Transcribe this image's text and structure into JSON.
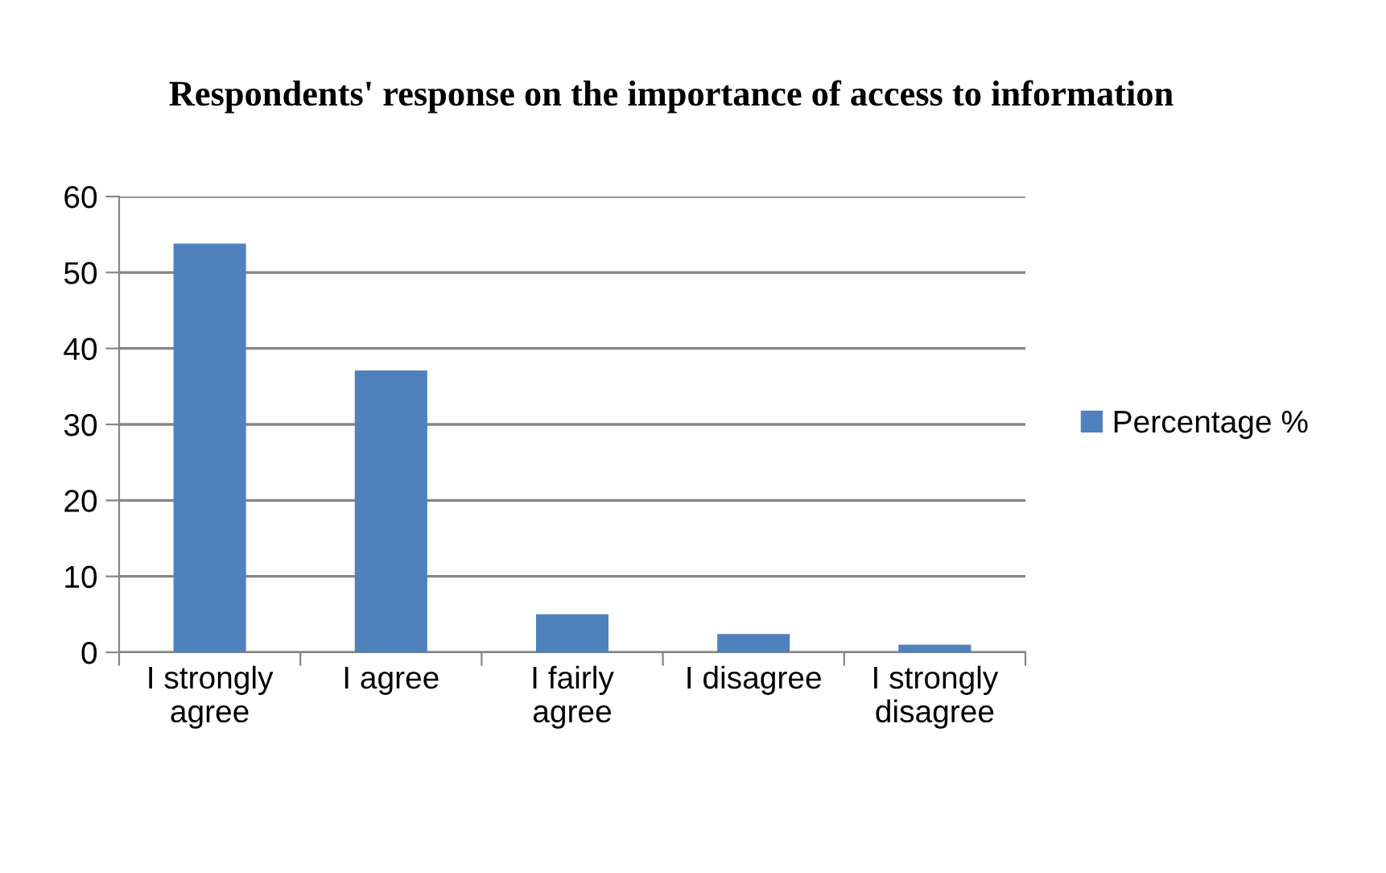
{
  "chart_data": {
    "type": "bar",
    "title": "Respondents' response on the importance of access to information",
    "categories": [
      "I strongly\nagree",
      "I agree",
      "I fairly\nagree",
      "I disagree",
      "I strongly\ndisagree"
    ],
    "series": [
      {
        "name": "Percentage %",
        "color": "#4f81bd",
        "values": [
          53.8,
          37.1,
          5.0,
          2.4,
          1.0
        ]
      }
    ],
    "ylim": [
      0,
      60
    ],
    "yticks": [
      0,
      10,
      20,
      30,
      40,
      50,
      60
    ],
    "grid": "y",
    "legend": "right"
  }
}
